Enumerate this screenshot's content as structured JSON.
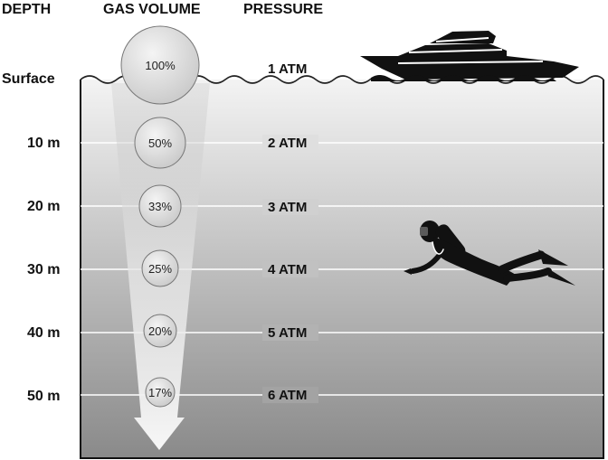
{
  "headers": {
    "depth": "DEPTH",
    "gas_volume": "GAS VOLUME",
    "pressure": "PRESSURE"
  },
  "levels": [
    {
      "depth": "Surface",
      "volume": "100%",
      "pressure": "1 ATM"
    },
    {
      "depth": "10 m",
      "volume": "50%",
      "pressure": "2 ATM"
    },
    {
      "depth": "20 m",
      "volume": "33%",
      "pressure": "3 ATM"
    },
    {
      "depth": "30 m",
      "volume": "25%",
      "pressure": "4 ATM"
    },
    {
      "depth": "40 m",
      "volume": "20%",
      "pressure": "5 ATM"
    },
    {
      "depth": "50 m",
      "volume": "17%",
      "pressure": "6 ATM"
    }
  ],
  "icons": [
    "boat-icon",
    "scuba-diver-icon"
  ],
  "colors": {
    "water_top": "#f2f2f2",
    "water_bottom": "#8c8c8c",
    "depth_line": "#ffffff",
    "silhouette": "#111111"
  }
}
